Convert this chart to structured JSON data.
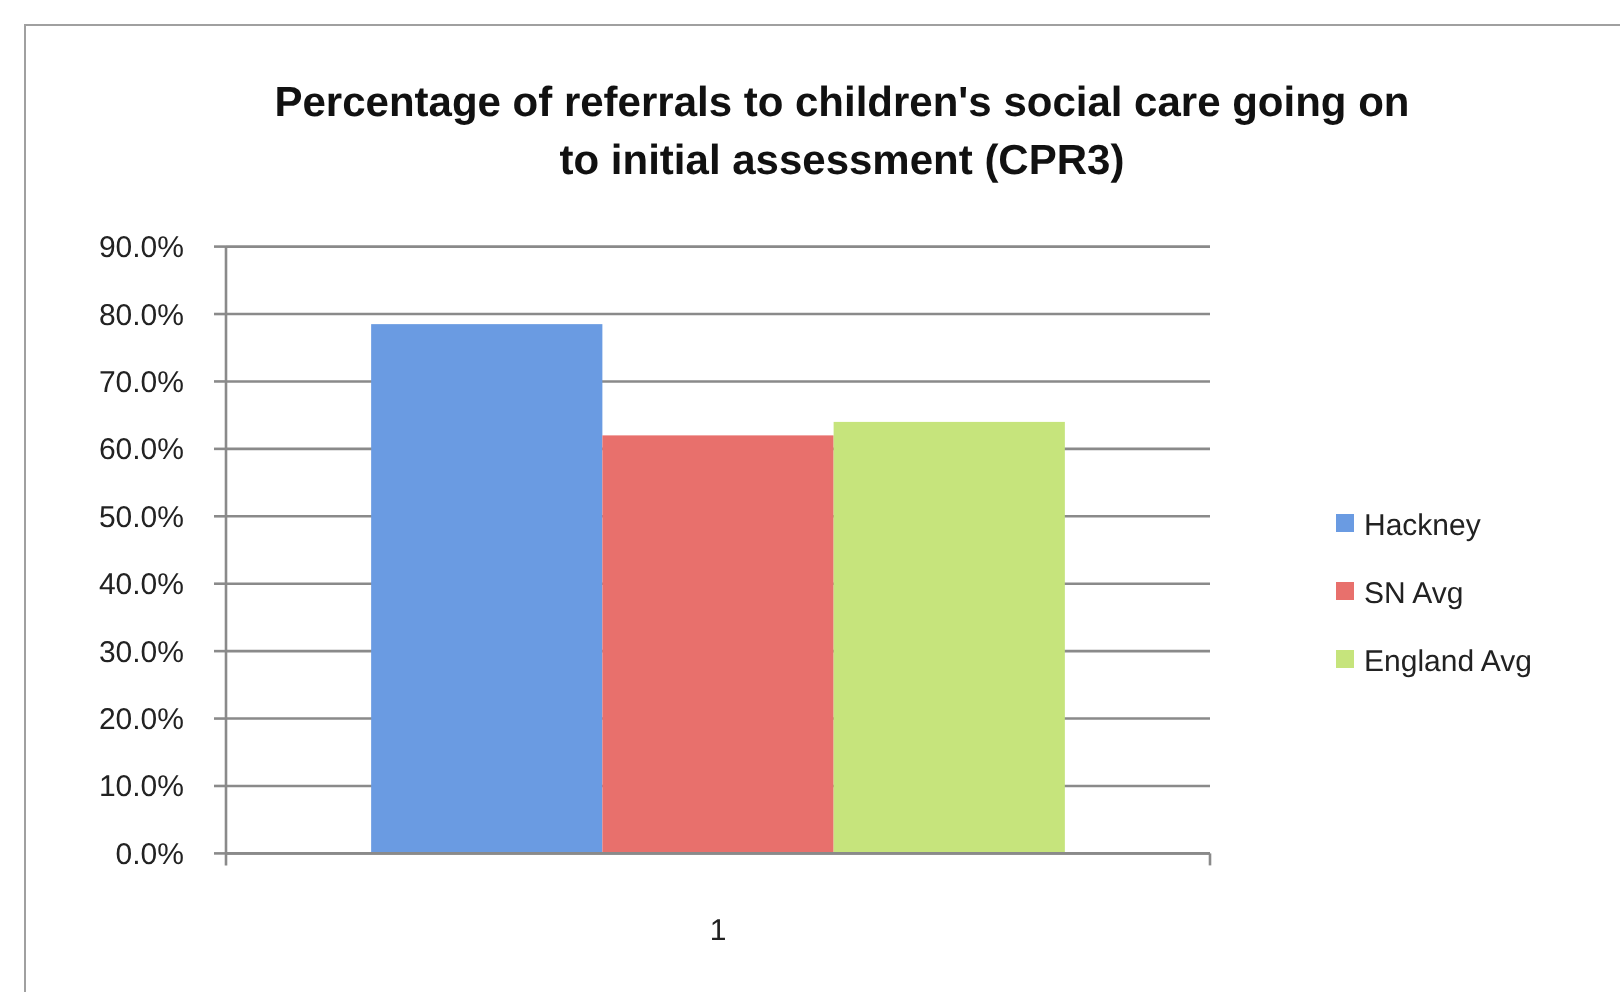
{
  "chart_data": {
    "type": "bar",
    "title": "Percentage of referrals to children's social care going on to initial assessment (CPR3)",
    "categories": [
      "1"
    ],
    "series": [
      {
        "name": "Hackney",
        "color": "#6a9be2",
        "values": [
          78.5
        ]
      },
      {
        "name": "SN Avg",
        "color": "#e8706c",
        "values": [
          62.0
        ]
      },
      {
        "name": "England Avg",
        "color": "#c6e47c",
        "values": [
          64.0
        ]
      }
    ],
    "ylim": [
      0,
      90
    ],
    "yticks": [
      {
        "value": 0,
        "label": "0.0%"
      },
      {
        "value": 10,
        "label": "10.0%"
      },
      {
        "value": 20,
        "label": "20.0%"
      },
      {
        "value": 30,
        "label": "30.0%"
      },
      {
        "value": 40,
        "label": "40.0%"
      },
      {
        "value": 50,
        "label": "50.0%"
      },
      {
        "value": 60,
        "label": "60.0%"
      },
      {
        "value": 70,
        "label": "70.0%"
      },
      {
        "value": 80,
        "label": "80.0%"
      },
      {
        "value": 90,
        "label": "90.0%"
      }
    ],
    "grid": "y",
    "legend": "right"
  }
}
